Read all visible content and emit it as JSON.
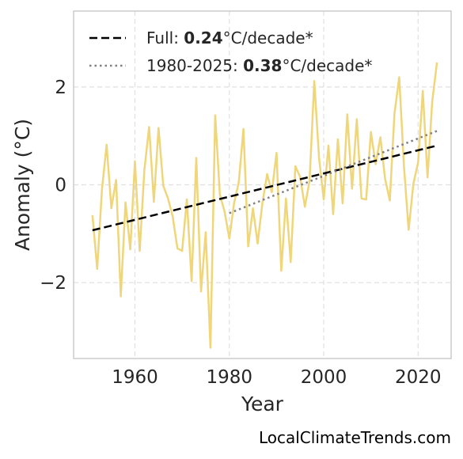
{
  "chart_data": {
    "type": "line",
    "xlabel": "Year",
    "ylabel": "Anomaly (°C)",
    "xlim": [
      1947,
      2027
    ],
    "ylim": [
      -3.55,
      3.55
    ],
    "xticks": [
      1960,
      1980,
      2000,
      2020
    ],
    "yticks": [
      -2,
      0,
      2
    ],
    "xtick_labels": [
      "1960",
      "1980",
      "2000",
      "2020"
    ],
    "ytick_labels": [
      "−2",
      "0",
      "2"
    ],
    "grid": true,
    "legend_position": "top-left",
    "series": [
      {
        "role": "anomaly",
        "color": "#f0d67a",
        "x": [
          1951,
          1952,
          1953,
          1954,
          1955,
          1956,
          1957,
          1958,
          1959,
          1960,
          1961,
          1962,
          1963,
          1964,
          1965,
          1966,
          1967,
          1968,
          1969,
          1970,
          1971,
          1972,
          1973,
          1974,
          1975,
          1976,
          1977,
          1978,
          1979,
          1980,
          1981,
          1982,
          1983,
          1984,
          1985,
          1986,
          1987,
          1988,
          1989,
          1990,
          1991,
          1992,
          1993,
          1994,
          1995,
          1996,
          1997,
          1998,
          1999,
          2000,
          2001,
          2002,
          2003,
          2004,
          2005,
          2006,
          2007,
          2008,
          2009,
          2010,
          2011,
          2012,
          2013,
          2014,
          2015,
          2016,
          2017,
          2018,
          2019,
          2020,
          2021,
          2022,
          2023,
          2024
        ],
        "y": [
          -0.62,
          -1.72,
          -0.1,
          0.82,
          -0.48,
          0.1,
          -2.28,
          -0.36,
          -1.32,
          0.48,
          -1.35,
          0.3,
          1.18,
          -0.35,
          1.16,
          -0.02,
          -0.28,
          -0.65,
          -1.3,
          -1.35,
          -0.3,
          -1.97,
          0.55,
          -2.18,
          -0.97,
          -3.33,
          1.42,
          -0.2,
          -0.55,
          -1.1,
          -0.38,
          0.05,
          1.14,
          -1.26,
          -0.48,
          -1.2,
          -0.38,
          0.22,
          -0.15,
          0.65,
          -1.76,
          -0.28,
          -1.58,
          0.38,
          0.16,
          -0.45,
          0.08,
          2.12,
          0.55,
          -0.3,
          0.8,
          -0.6,
          0.93,
          -0.38,
          1.44,
          -0.08,
          1.34,
          -0.28,
          -0.3,
          1.08,
          0.42,
          0.97,
          0.13,
          -0.32,
          1.45,
          2.2,
          0.38,
          -0.92,
          0.02,
          0.46,
          1.92,
          0.15,
          1.7,
          2.5
        ]
      },
      {
        "name": "Full",
        "role": "trend-full",
        "style": "dashed",
        "color": "#000000",
        "x": [
          1951,
          2024
        ],
        "y": [
          -0.93,
          0.8
        ]
      },
      {
        "name": "1980-2025",
        "role": "trend-recent",
        "style": "dotted",
        "color": "#808080",
        "x": [
          1980,
          2024
        ],
        "y": [
          -0.58,
          1.1
        ]
      }
    ],
    "legend": [
      {
        "prefix": "Full: ",
        "value": "0.24",
        "suffix": "°C/decade*"
      },
      {
        "prefix": "1980-2025: ",
        "value": "0.38",
        "suffix": "°C/decade*"
      }
    ]
  },
  "credit": "LocalClimateTrends.com"
}
